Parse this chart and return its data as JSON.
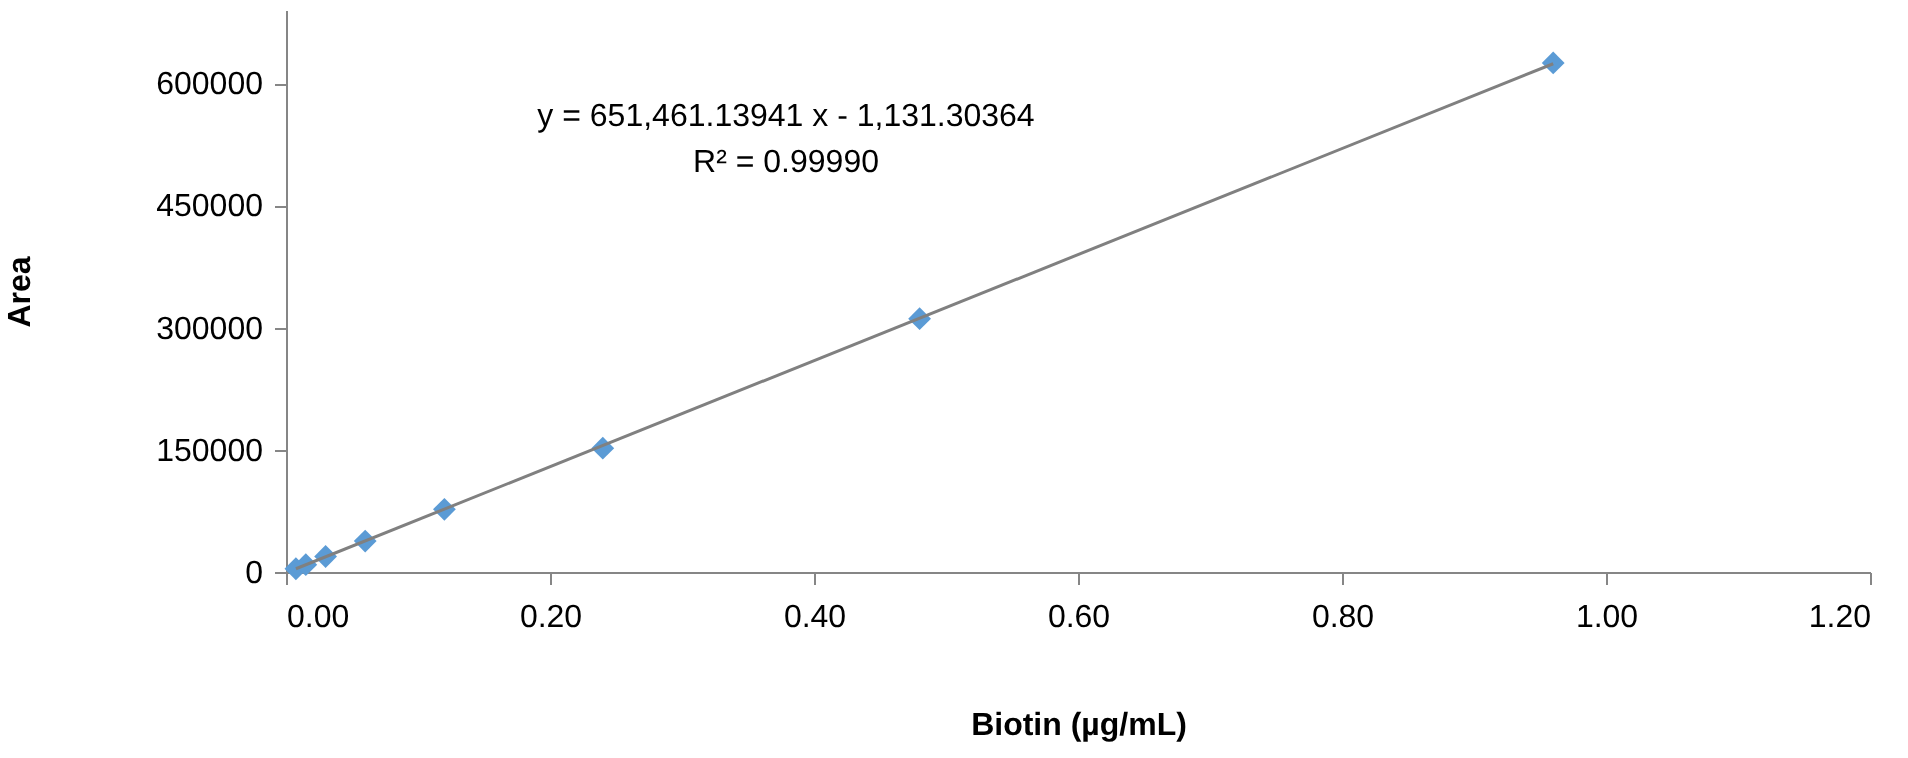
{
  "chart_data": {
    "type": "scatter",
    "xlabel": "Biotin (µg/mL)",
    "ylabel": "Area",
    "xlim": [
      0,
      1.2
    ],
    "xticks": [
      {
        "value": 0,
        "label": "0.00"
      },
      {
        "value": 0.2,
        "label": "0.20"
      },
      {
        "value": 0.4,
        "label": "0.40"
      },
      {
        "value": 0.6,
        "label": "0.60"
      },
      {
        "value": 0.8,
        "label": "0.80"
      },
      {
        "value": 1.0,
        "label": "1.00"
      },
      {
        "value": 1.2,
        "label": "1.20"
      }
    ],
    "ylim": [
      0,
      690000
    ],
    "yticks": [
      0,
      150000,
      300000,
      450000,
      600000
    ],
    "grid": false,
    "marker": "diamond",
    "annotations": [
      "y = 651,461.13941 x - 1,131.30364",
      "R² = 0.99990"
    ],
    "series": [
      {
        "color": "#5b9bd5",
        "x": [
          0.0075,
          0.015,
          0.03,
          0.06,
          0.12,
          0.24,
          0.48,
          0.96
        ],
        "values": [
          4000,
          9000,
          19000,
          38000,
          77000,
          152000,
          311000,
          625000
        ]
      },
      {
        "type": "line",
        "color": "#808080",
        "line_style": "solid",
        "marker": "none",
        "x": [
          0.0075,
          0.96
        ],
        "values": [
          4000,
          624000
        ]
      }
    ]
  }
}
